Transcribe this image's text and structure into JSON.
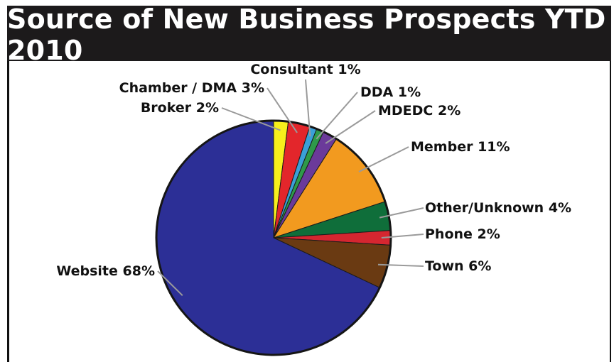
{
  "chart_data": {
    "type": "pie",
    "title": "Source of New Business Prospects YTD 2010",
    "slices": [
      {
        "name": "Broker",
        "value": 2,
        "label": "Broker 2%",
        "color": "#f7ef1c"
      },
      {
        "name": "Chamber / DMA",
        "value": 3,
        "label": "Chamber / DMA 3%",
        "color": "#e3262b"
      },
      {
        "name": "Consultant",
        "value": 1,
        "label": "Consultant 1%",
        "color": "#3aa0d8"
      },
      {
        "name": "DDA",
        "value": 1,
        "label": "DDA 1%",
        "color": "#2e9a4a"
      },
      {
        "name": "MDEDC",
        "value": 2,
        "label": "MDEDC 2%",
        "color": "#6b3a9a"
      },
      {
        "name": "Member",
        "value": 11,
        "label": "Member 11%",
        "color": "#f29a1f"
      },
      {
        "name": "Other/Unknown",
        "value": 4,
        "label": "Other/Unknown 4%",
        "color": "#0f6e3a"
      },
      {
        "name": "Phone",
        "value": 2,
        "label": "Phone 2%",
        "color": "#d52630"
      },
      {
        "name": "Town",
        "value": 6,
        "label": "Town 6%",
        "color": "#6a3a12"
      },
      {
        "name": "Website",
        "value": 68,
        "label": "Website 68%",
        "color": "#2c2f96"
      }
    ],
    "start_angle_deg": 0,
    "direction": "clockwise",
    "legend": "none"
  }
}
